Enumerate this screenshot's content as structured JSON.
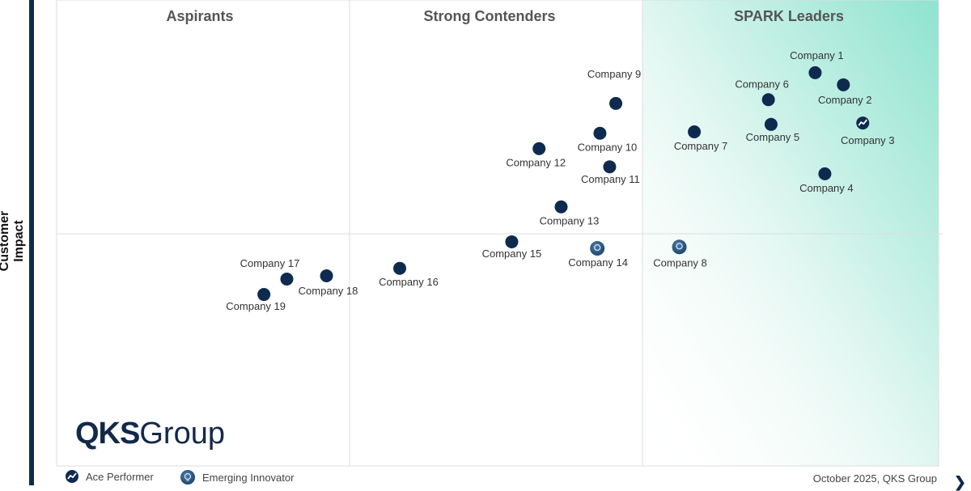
{
  "chart_data": {
    "type": "scatter",
    "title": "",
    "ylabel": "Customer Impact",
    "xlabel": "",
    "xlim": [
      0,
      100
    ],
    "ylim": [
      0,
      100
    ],
    "quadrants": [
      "Aspirants",
      "Strong Contenders",
      "SPARK Leaders"
    ],
    "points": [
      {
        "name": "Company 1",
        "x": 86.0,
        "y": 84.4,
        "type": "normal"
      },
      {
        "name": "Company 2",
        "x": 89.2,
        "y": 81.8,
        "type": "normal"
      },
      {
        "name": "Company 3",
        "x": 91.4,
        "y": 73.6,
        "type": "ace"
      },
      {
        "name": "Company 4",
        "x": 87.1,
        "y": 62.7,
        "type": "normal"
      },
      {
        "name": "Company 5",
        "x": 81.0,
        "y": 73.3,
        "type": "normal"
      },
      {
        "name": "Company 6",
        "x": 80.7,
        "y": 78.6,
        "type": "normal"
      },
      {
        "name": "Company 7",
        "x": 72.3,
        "y": 71.7,
        "type": "normal"
      },
      {
        "name": "Company 8",
        "x": 70.6,
        "y": 47.0,
        "type": "innovator"
      },
      {
        "name": "Company 9",
        "x": 63.4,
        "y": 77.8,
        "type": "normal"
      },
      {
        "name": "Company 10",
        "x": 61.6,
        "y": 71.4,
        "type": "normal"
      },
      {
        "name": "Company 11",
        "x": 62.7,
        "y": 64.2,
        "type": "normal"
      },
      {
        "name": "Company 12",
        "x": 54.7,
        "y": 68.1,
        "type": "normal"
      },
      {
        "name": "Company 13",
        "x": 57.2,
        "y": 55.6,
        "type": "normal"
      },
      {
        "name": "Company 14",
        "x": 61.3,
        "y": 46.7,
        "type": "innovator"
      },
      {
        "name": "Company 15",
        "x": 51.6,
        "y": 48.1,
        "type": "normal"
      },
      {
        "name": "Company 16",
        "x": 38.9,
        "y": 42.4,
        "type": "normal"
      },
      {
        "name": "Company 17",
        "x": 26.1,
        "y": 40.1,
        "type": "normal"
      },
      {
        "name": "Company 18",
        "x": 30.6,
        "y": 40.8,
        "type": "normal"
      },
      {
        "name": "Company 19",
        "x": 23.5,
        "y": 36.8,
        "type": "normal"
      }
    ],
    "legend": {
      "ace": "Ace Performer",
      "innovator": "Emerging Innovator"
    }
  },
  "logo": {
    "bold": "QKS",
    "light": "Group"
  },
  "footer": "October 2025, QKS Group",
  "colors": {
    "dot": "#0f2a4f",
    "innovator": "#2e5a85",
    "leader_gradient": "#8fe3cf"
  }
}
